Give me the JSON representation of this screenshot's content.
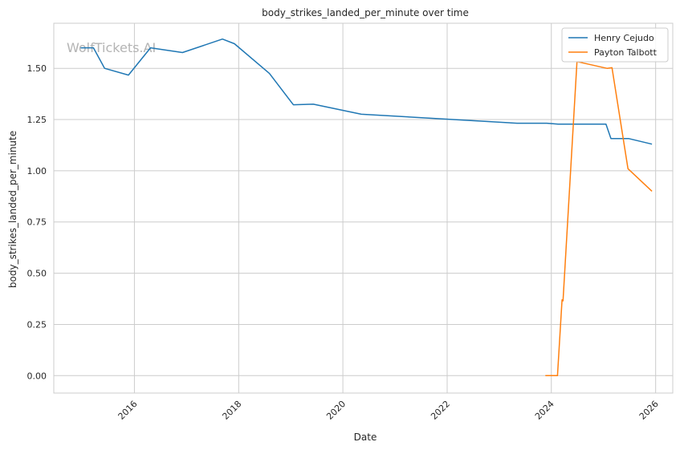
{
  "chart_data": {
    "type": "line",
    "title": "body_strikes_landed_per_minute over time",
    "xlabel": "Date",
    "ylabel": "body_strikes_landed_per_minute",
    "watermark": "WolfTickets.AI",
    "xlim": [
      "2014-06-15",
      "2026-05-01"
    ],
    "ylim": [
      -0.085,
      1.72
    ],
    "x_ticks": [
      "2016",
      "2018",
      "2020",
      "2022",
      "2024",
      "2026"
    ],
    "y_ticks": [
      0.0,
      0.25,
      0.5,
      0.75,
      1.0,
      1.25,
      1.5
    ],
    "y_tick_labels": [
      "0.00",
      "0.25",
      "0.50",
      "0.75",
      "1.00",
      "1.25",
      "1.50"
    ],
    "grid": true,
    "legend_position": "top-right",
    "series": [
      {
        "name": "Henry Cejudo",
        "color": "#1f77b4",
        "points": [
          [
            "2014-12-20",
            1.6
          ],
          [
            "2015-03-20",
            1.6
          ],
          [
            "2015-06-06",
            1.5
          ],
          [
            "2015-11-20",
            1.467
          ],
          [
            "2016-04-23",
            1.6
          ],
          [
            "2016-12-03",
            1.577
          ],
          [
            "2017-09-09",
            1.643
          ],
          [
            "2017-12-02",
            1.62
          ],
          [
            "2018-08-04",
            1.475
          ],
          [
            "2019-01-19",
            1.322
          ],
          [
            "2019-06-08",
            1.325
          ],
          [
            "2020-05-09",
            1.276
          ],
          [
            "2023-05-06",
            1.232
          ],
          [
            "2023-11-30",
            1.232
          ],
          [
            "2024-02-17",
            1.228
          ],
          [
            "2025-01-18",
            1.228
          ],
          [
            "2025-02-22",
            1.157
          ],
          [
            "2025-06-28",
            1.157
          ],
          [
            "2025-12-06",
            1.13
          ]
        ]
      },
      {
        "name": "Payton Talbott",
        "color": "#ff7f0e",
        "points": [
          [
            "2023-11-20",
            0.0
          ],
          [
            "2024-02-13",
            0.0
          ],
          [
            "2024-03-16",
            0.37
          ],
          [
            "2024-03-23",
            0.365
          ],
          [
            "2024-06-29",
            1.533
          ],
          [
            "2025-01-25",
            1.5
          ],
          [
            "2025-03-01",
            1.503
          ],
          [
            "2025-06-21",
            1.01
          ],
          [
            "2025-12-06",
            0.9
          ]
        ]
      }
    ]
  }
}
